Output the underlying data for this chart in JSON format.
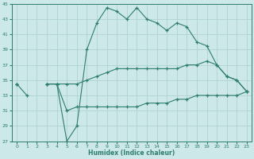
{
  "xlabel": "Humidex (Indice chaleur)",
  "main": [
    34.5,
    33.0,
    null,
    34.5,
    34.5,
    27.0,
    29.0,
    39.0,
    42.5,
    44.5,
    44.0,
    43.0,
    44.5,
    43.0,
    42.5,
    41.5,
    42.5,
    42.0,
    40.0,
    39.5,
    37.0,
    35.5,
    35.0,
    33.5
  ],
  "upper": [
    34.5,
    null,
    null,
    34.5,
    34.5,
    34.5,
    34.5,
    35.0,
    35.5,
    36.0,
    36.5,
    36.5,
    36.5,
    36.5,
    36.5,
    36.5,
    36.5,
    37.0,
    37.0,
    37.5,
    37.0,
    35.5,
    35.0,
    33.5
  ],
  "lower": [
    34.5,
    null,
    null,
    34.5,
    34.5,
    31.0,
    31.5,
    31.5,
    31.5,
    31.5,
    31.5,
    31.5,
    31.5,
    32.0,
    32.0,
    32.0,
    32.5,
    32.5,
    33.0,
    33.0,
    33.0,
    33.0,
    33.0,
    33.5
  ],
  "x": [
    0,
    1,
    2,
    3,
    4,
    5,
    6,
    7,
    8,
    9,
    10,
    11,
    12,
    13,
    14,
    15,
    16,
    17,
    18,
    19,
    20,
    21,
    22,
    23
  ],
  "ylim": [
    27,
    45
  ],
  "xlim": [
    -0.5,
    23.5
  ],
  "yticks": [
    27,
    29,
    31,
    33,
    35,
    37,
    39,
    41,
    43,
    45
  ],
  "xticks": [
    0,
    1,
    2,
    3,
    4,
    5,
    6,
    7,
    8,
    9,
    10,
    11,
    12,
    13,
    14,
    15,
    16,
    17,
    18,
    19,
    20,
    21,
    22,
    23
  ],
  "line_color": "#2e7d6e",
  "bg_color": "#cce8e8",
  "grid_color": "#aacece"
}
